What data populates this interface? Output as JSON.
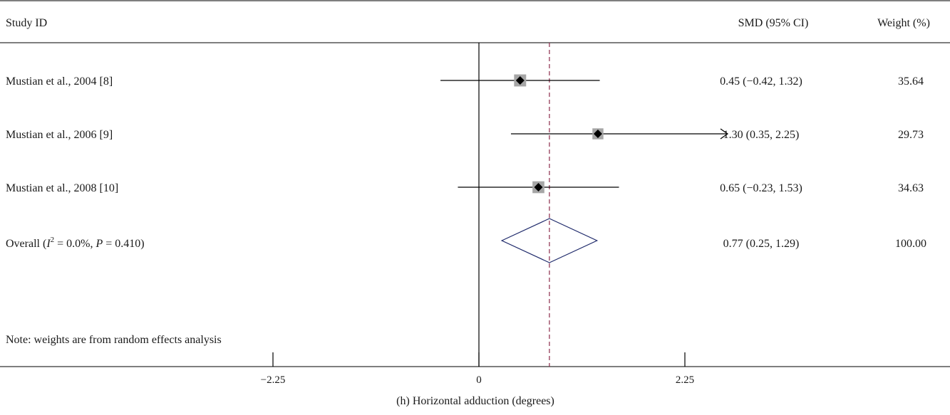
{
  "chart_data": {
    "type": "forest",
    "headers": {
      "study": "Study ID",
      "estimate": "SMD (95% CI)",
      "weight": "Weight (%)"
    },
    "studies": [
      {
        "label": "Mustian et al., 2004 [8]",
        "smd": 0.45,
        "lower": -0.42,
        "upper": 1.32,
        "ci_text": "0.45 (−0.42, 1.32)",
        "weight_text": "35.64",
        "weight": 35.64,
        "arrow_right": false
      },
      {
        "label": "Mustian et al., 2006 [9]",
        "smd": 1.3,
        "lower": 0.35,
        "upper": 2.25,
        "ci_text": "1.30 (0.35, 2.25)",
        "weight_text": "29.73",
        "weight": 29.73,
        "arrow_right": true
      },
      {
        "label": "Mustian et al., 2008 [10]",
        "smd": 0.65,
        "lower": -0.23,
        "upper": 1.53,
        "ci_text": "0.65 (−0.23, 1.53)",
        "weight_text": "34.63",
        "weight": 34.63,
        "arrow_right": false
      }
    ],
    "overall": {
      "label_prefix": "Overall (",
      "label_i": "I",
      "label_sup": "2",
      "label_mid": " = 0.0%, ",
      "label_p": "P",
      "label_suffix": " = 0.410)",
      "smd": 0.77,
      "lower": 0.25,
      "upper": 1.29,
      "ci_text": "0.77 (0.25, 1.29)",
      "weight_text": "100.00"
    },
    "note": "Note: weights are from random effects analysis",
    "x_ticks": [
      {
        "value": -2.25,
        "label": "−2.25"
      },
      {
        "value": 0,
        "label": "0"
      },
      {
        "value": 2.25,
        "label": "2.25"
      }
    ],
    "xlim": [
      -5.25,
      4.94
    ],
    "null_line": 0,
    "xlabel": "(h)  Horizontal adduction (degrees)",
    "colors": {
      "marker_box": "#a6a6a6",
      "point": "#000000",
      "overall_diamond": "#1f2a6b",
      "overall_line": "#8b2a4a"
    }
  }
}
